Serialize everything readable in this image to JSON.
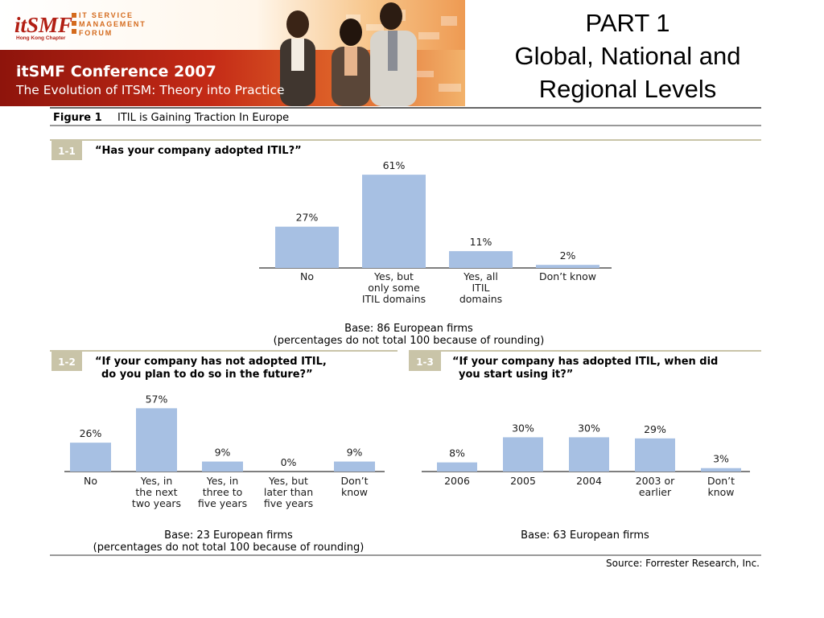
{
  "banner": {
    "logo_text": "itSMF",
    "chapter": "Hong Kong Chapter",
    "org_lines": [
      "IT SERVICE",
      "MANAGEMENT",
      "FORUM"
    ],
    "conference": "itSMF Conference 2007",
    "theme": "The Evolution of ITSM: Theory into Practice"
  },
  "slide": {
    "title_lines": [
      "PART 1",
      "Global, National and",
      "Regional Levels"
    ]
  },
  "figure": {
    "label": "Figure 1",
    "title": "ITIL is Gaining Traction In Europe",
    "source": "Source: Forrester Research, Inc."
  },
  "colors": {
    "bar": "#a7c0e3",
    "tag_bg": "#c9c4a8",
    "rule": "#333333",
    "banner_red": "#b21f14"
  },
  "chart_data": [
    {
      "id": "1-1",
      "type": "bar",
      "question": "“Has your company adopted ITIL?”",
      "categories": [
        [
          "No"
        ],
        [
          "Yes, but",
          "only some",
          "ITIL domains"
        ],
        [
          "Yes, all",
          "ITIL",
          "domains"
        ],
        [
          "Don’t know"
        ]
      ],
      "values": [
        27,
        61,
        11,
        2
      ],
      "value_labels": [
        "27%",
        "61%",
        "11%",
        "2%"
      ],
      "base": [
        "Base: 86 European firms",
        "(percentages do not total 100 because of rounding)"
      ]
    },
    {
      "id": "1-2",
      "type": "bar",
      "question": "“If your company has not adopted ITIL,",
      "question_line2": "do you plan to do so in the future?”",
      "categories": [
        [
          "No"
        ],
        [
          "Yes, in",
          "the next",
          "two years"
        ],
        [
          "Yes, in",
          "three to",
          "five years"
        ],
        [
          "Yes, but",
          "later than",
          "five years"
        ],
        [
          "Don’t",
          "know"
        ]
      ],
      "values": [
        26,
        57,
        9,
        0,
        9
      ],
      "value_labels": [
        "26%",
        "57%",
        "9%",
        "0%",
        "9%"
      ],
      "base": [
        "Base: 23 European firms",
        "(percentages do not total 100 because of rounding)"
      ]
    },
    {
      "id": "1-3",
      "type": "bar",
      "question": "“If your company has adopted ITIL, when did",
      "question_line2": "you start using it?”",
      "categories": [
        [
          "2006"
        ],
        [
          "2005"
        ],
        [
          "2004"
        ],
        [
          "2003 or",
          "earlier"
        ],
        [
          "Don’t",
          "know"
        ]
      ],
      "values": [
        8,
        30,
        30,
        29,
        3
      ],
      "value_labels": [
        "8%",
        "30%",
        "30%",
        "29%",
        "3%"
      ],
      "base": [
        "Base: 63 European firms"
      ]
    }
  ]
}
